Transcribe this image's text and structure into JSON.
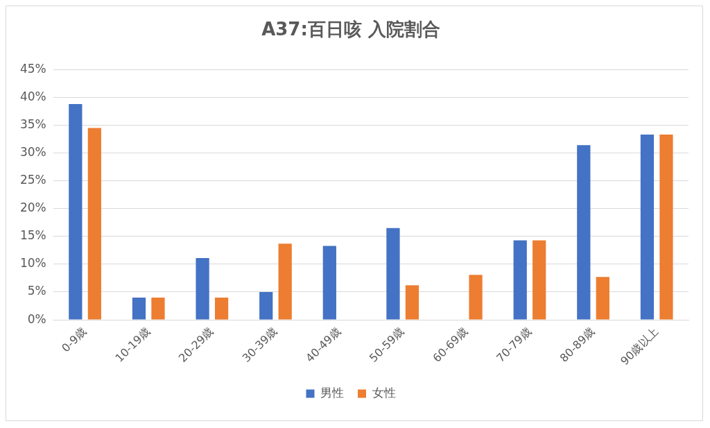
{
  "chart_data": {
    "type": "bar",
    "title": "A37:百日咳 入院割合",
    "categories": [
      "0-9歳",
      "10-19歳",
      "20-29歳",
      "30-39歳",
      "40-49歳",
      "50-59歳",
      "60-69歳",
      "70-79歳",
      "80-89歳",
      "90歳以上"
    ],
    "series": [
      {
        "name": "男性",
        "color": "#4472c4",
        "values": [
          38.8,
          4.0,
          11.1,
          5.0,
          13.3,
          16.5,
          0,
          14.3,
          31.4,
          33.3
        ]
      },
      {
        "name": "女性",
        "color": "#ed7d31",
        "values": [
          34.5,
          4.0,
          4.0,
          13.7,
          0,
          6.2,
          8.1,
          14.3,
          7.7,
          33.3
        ]
      }
    ],
    "ylim": [
      0,
      45
    ],
    "yticks": [
      {
        "value": 0,
        "label": "0%"
      },
      {
        "value": 5,
        "label": "5%"
      },
      {
        "value": 10,
        "label": "10%"
      },
      {
        "value": 15,
        "label": "15%"
      },
      {
        "value": 20,
        "label": "20%"
      },
      {
        "value": 25,
        "label": "25%"
      },
      {
        "value": 30,
        "label": "30%"
      },
      {
        "value": 35,
        "label": "35%"
      },
      {
        "value": 40,
        "label": "40%"
      },
      {
        "value": 45,
        "label": "45%"
      }
    ],
    "grid": "y",
    "legend": "bottom"
  }
}
